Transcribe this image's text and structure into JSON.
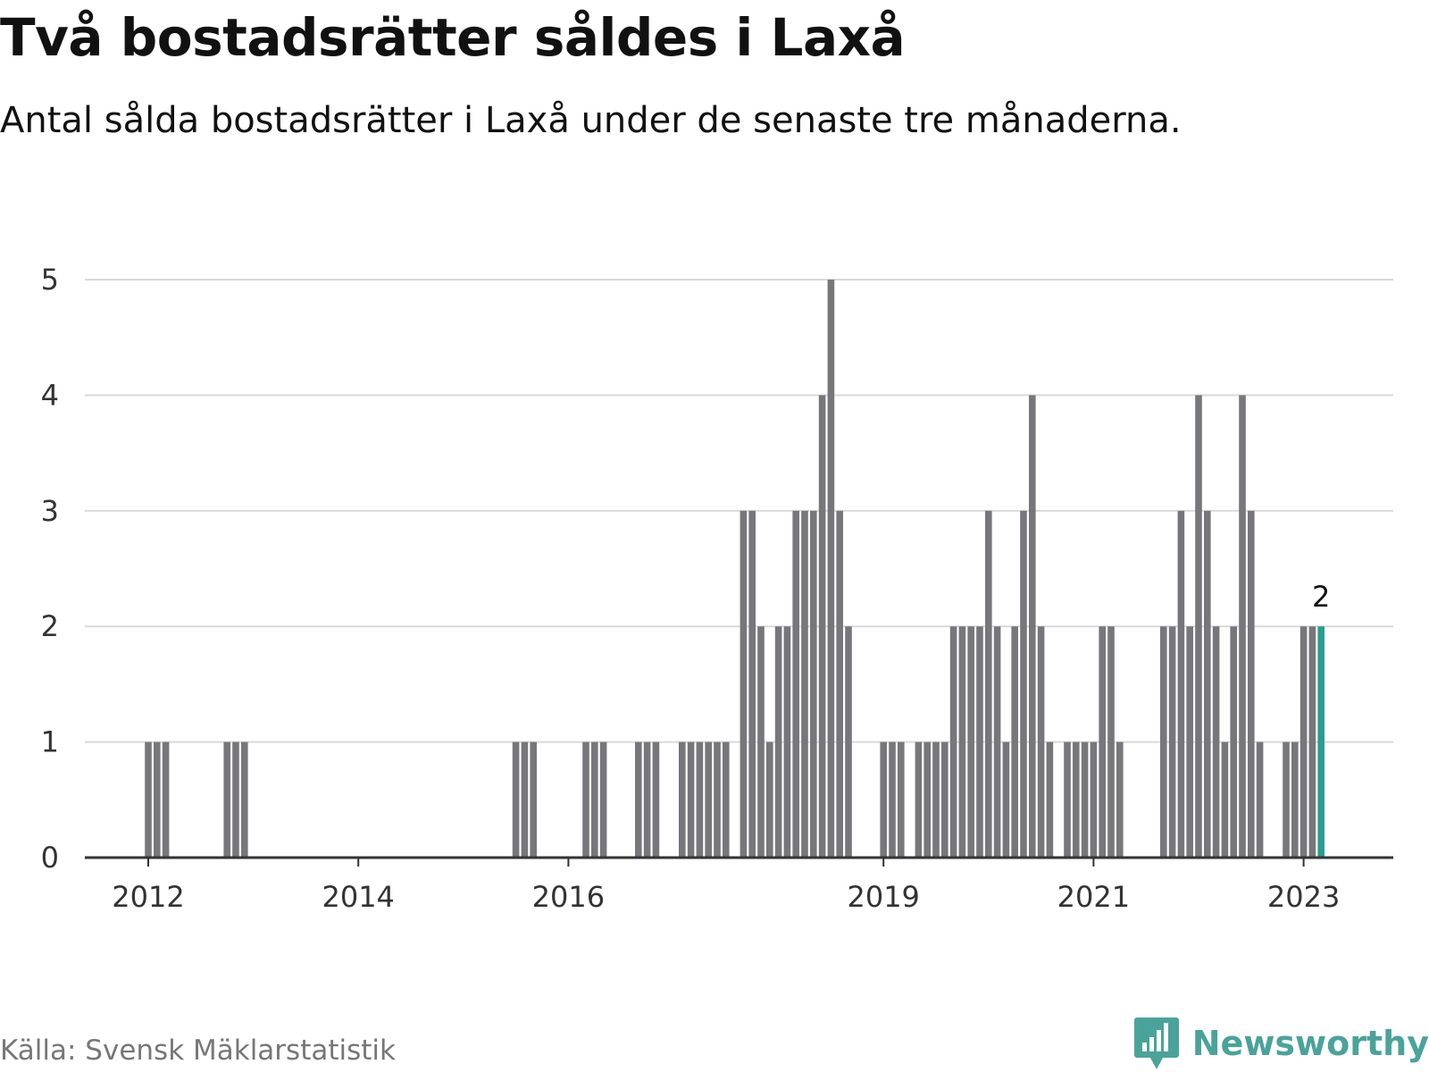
{
  "header": {
    "title": "Två bostadsrätter såldes i Laxå",
    "subtitle": "Antal sålda bostadsrätter i Laxå under de senaste tre månaderna."
  },
  "footer": {
    "source": "Källa: Svensk Mäklarstatistik",
    "brand": "Newsworthy",
    "brand_icon": "newsworthy-logo-icon"
  },
  "colors": {
    "bar": "#77767b",
    "highlight": "#2a9d8f",
    "grid": "#d9d9d9",
    "axis": "#333333"
  },
  "chart_data": {
    "type": "bar",
    "title": "Två bostadsrätter såldes i Laxå",
    "subtitle": "Antal sålda bostadsrätter i Laxå under de senaste tre månaderna.",
    "xlabel": "",
    "ylabel": "",
    "ylim": [
      0,
      5
    ],
    "yticks": [
      0,
      1,
      2,
      3,
      4,
      5
    ],
    "xticks": [
      "2012",
      "2014",
      "2016",
      "2019",
      "2021",
      "2023"
    ],
    "grid": true,
    "x": [
      "2012-01",
      "2012-02",
      "2012-03",
      "2012-10",
      "2012-11",
      "2012-12",
      "2015-07",
      "2015-08",
      "2015-09",
      "2016-03",
      "2016-04",
      "2016-05",
      "2016-09",
      "2016-10",
      "2016-11",
      "2017-02",
      "2017-03",
      "2017-04",
      "2017-05",
      "2017-06",
      "2017-07",
      "2017-09",
      "2017-10",
      "2017-11",
      "2017-12",
      "2018-01",
      "2018-02",
      "2018-03",
      "2018-04",
      "2018-05",
      "2018-06",
      "2018-07",
      "2018-08",
      "2018-09",
      "2019-01",
      "2019-02",
      "2019-03",
      "2019-05",
      "2019-06",
      "2019-07",
      "2019-08",
      "2019-09",
      "2019-10",
      "2019-11",
      "2019-12",
      "2020-01",
      "2020-02",
      "2020-03",
      "2020-04",
      "2020-05",
      "2020-06",
      "2020-07",
      "2020-08",
      "2020-10",
      "2020-11",
      "2020-12",
      "2021-01",
      "2021-02",
      "2021-03",
      "2021-04",
      "2021-09",
      "2021-10",
      "2021-11",
      "2021-12",
      "2022-01",
      "2022-02",
      "2022-03",
      "2022-04",
      "2022-05",
      "2022-06",
      "2022-07",
      "2022-08",
      "2022-11",
      "2022-12",
      "2023-01",
      "2023-02",
      "2023-03"
    ],
    "values": [
      1,
      1,
      1,
      1,
      1,
      1,
      1,
      1,
      1,
      1,
      1,
      1,
      1,
      1,
      1,
      1,
      1,
      1,
      1,
      1,
      1,
      3,
      3,
      2,
      1,
      2,
      2,
      3,
      3,
      3,
      4,
      5,
      3,
      2,
      1,
      1,
      1,
      1,
      1,
      1,
      1,
      2,
      2,
      2,
      2,
      3,
      2,
      1,
      2,
      3,
      4,
      2,
      1,
      1,
      1,
      1,
      1,
      2,
      2,
      1,
      2,
      2,
      3,
      2,
      4,
      3,
      2,
      1,
      2,
      4,
      3,
      1,
      1,
      1,
      2,
      2,
      2
    ],
    "highlight": "2023-03",
    "annotations": [
      {
        "x": "2023-03",
        "text": "2"
      }
    ]
  }
}
